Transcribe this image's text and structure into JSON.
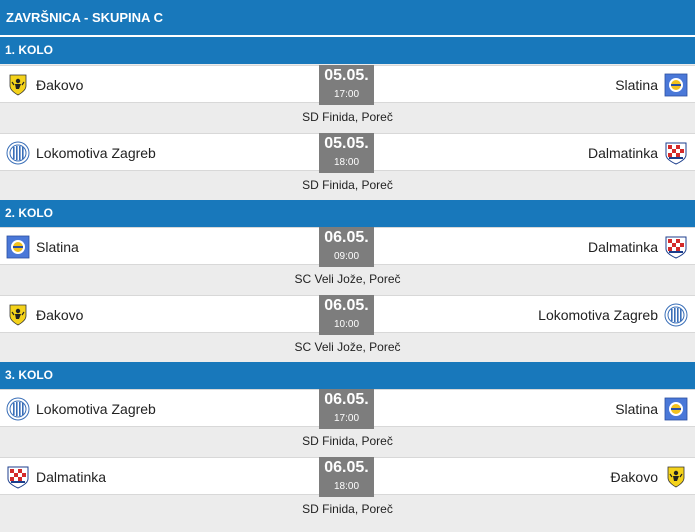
{
  "page": {
    "title": "ZAVRŠNICA - SKUPINA C"
  },
  "colors": {
    "header_blue": "#1878bb",
    "date_box_gray": "#7d7d7d",
    "row_bg": "#ffffff",
    "page_bg": "#ececec"
  },
  "rounds": [
    {
      "label": "1. KOLO",
      "matches": [
        {
          "home": "Đakovo",
          "home_logo": "dakovo-logo-icon",
          "away": "Slatina",
          "away_logo": "slatina-logo-icon",
          "date": "05.05.",
          "time": "17:00",
          "venue": "SD Finida, Poreč"
        },
        {
          "home": "Lokomotiva Zagreb",
          "home_logo": "lokomotiva-logo-icon",
          "away": "Dalmatinka",
          "away_logo": "dalmatinka-logo-icon",
          "date": "05.05.",
          "time": "18:00",
          "venue": "SD Finida, Poreč"
        }
      ]
    },
    {
      "label": "2. KOLO",
      "matches": [
        {
          "home": "Slatina",
          "home_logo": "slatina-logo-icon",
          "away": "Dalmatinka",
          "away_logo": "dalmatinka-logo-icon",
          "date": "06.05.",
          "time": "09:00",
          "venue": "SC Veli Jože, Poreč"
        },
        {
          "home": "Đakovo",
          "home_logo": "dakovo-logo-icon",
          "away": "Lokomotiva Zagreb",
          "away_logo": "lokomotiva-logo-icon",
          "date": "06.05.",
          "time": "10:00",
          "venue": "SC Veli Jože, Poreč"
        }
      ]
    },
    {
      "label": "3. KOLO",
      "matches": [
        {
          "home": "Lokomotiva Zagreb",
          "home_logo": "lokomotiva-logo-icon",
          "away": "Slatina",
          "away_logo": "slatina-logo-icon",
          "date": "06.05.",
          "time": "17:00",
          "venue": "SD Finida, Poreč"
        },
        {
          "home": "Dalmatinka",
          "home_logo": "dalmatinka-logo-icon",
          "away": "Đakovo",
          "away_logo": "dakovo-logo-icon",
          "date": "06.05.",
          "time": "18:00",
          "venue": "SD Finida, Poreč"
        }
      ]
    }
  ]
}
